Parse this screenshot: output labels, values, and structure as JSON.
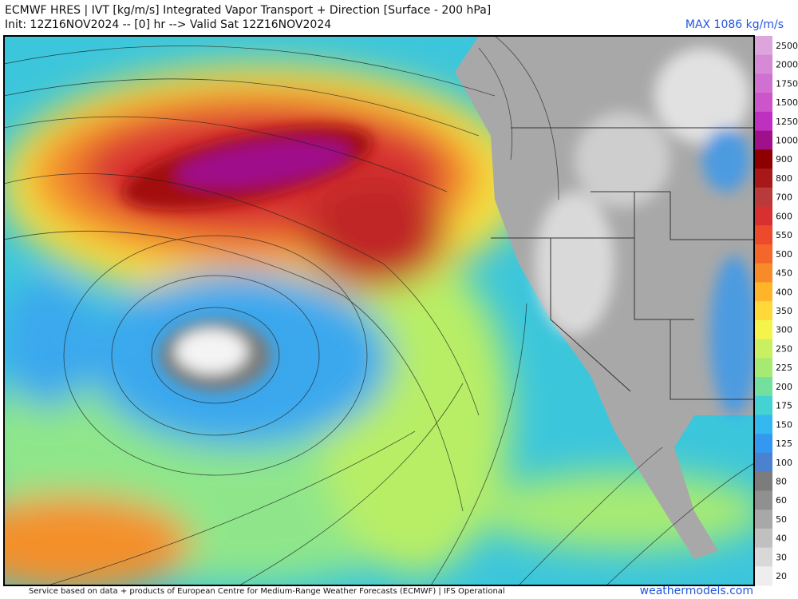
{
  "header": {
    "title": "ECMWF HRES | IVT [kg/m/s] Integrated Vapor Transport + Direction [Surface - 200 hPa]",
    "subtitle": "Init: 12Z16NOV2024 -- [0] hr --> Valid Sat 12Z16NOV2024",
    "max_label": "MAX 1086 kg/m/s"
  },
  "colorbar": {
    "labels": [
      "2500",
      "2000",
      "1750",
      "1500",
      "1250",
      "1000",
      "900",
      "800",
      "700",
      "600",
      "550",
      "500",
      "450",
      "400",
      "350",
      "300",
      "250",
      "225",
      "200",
      "175",
      "150",
      "125",
      "100",
      "80",
      "60",
      "50",
      "40",
      "30",
      "20"
    ],
    "colors": [
      "#dca6dc",
      "#d68ad6",
      "#d070d0",
      "#cc55cc",
      "#c030c0",
      "#a0108a",
      "#8e0000",
      "#a81818",
      "#b83a3a",
      "#d83030",
      "#ec4a2a",
      "#f4662a",
      "#f88a2a",
      "#ffb42a",
      "#ffd83a",
      "#f4f44a",
      "#c8f060",
      "#a6ea74",
      "#74e0a0",
      "#44d2d2",
      "#34b8f0",
      "#3498f0",
      "#4a82d0",
      "#7c7c7c",
      "#909090",
      "#a8a8a8",
      "#c0c0c0",
      "#d8d8d8",
      "#eeeeee"
    ]
  },
  "footer": {
    "credit": "Service based on data + products of European Centre for Medium-Range Weather Forecasts (ECMWF) | IFS Operational",
    "site": "weathermodels.com"
  }
}
